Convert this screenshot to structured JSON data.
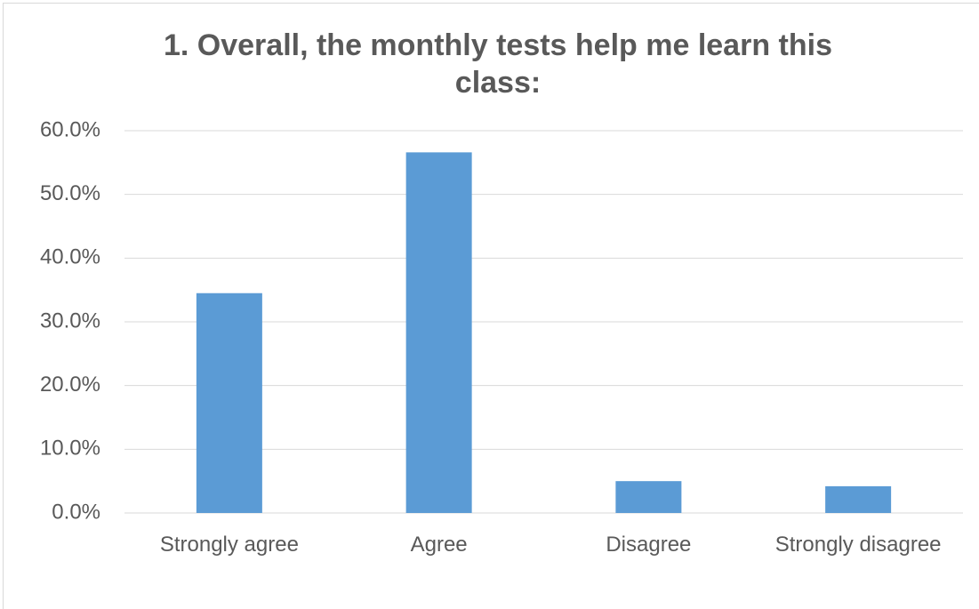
{
  "chart_data": {
    "type": "bar",
    "title": "1. Overall, the monthly tests help me learn this class:",
    "categories": [
      "Strongly agree",
      "Agree",
      "Disagree",
      "Strongly disagree"
    ],
    "values": [
      34.5,
      56.6,
      5.0,
      4.2
    ],
    "color": "#5b9bd5",
    "ylim": [
      0,
      60
    ],
    "yticks": [
      {
        "value": 0,
        "label": "0.0%"
      },
      {
        "value": 10,
        "label": "10.0%"
      },
      {
        "value": 20,
        "label": "20.0%"
      },
      {
        "value": 30,
        "label": "30.0%"
      },
      {
        "value": 40,
        "label": "40.0%"
      },
      {
        "value": 50,
        "label": "50.0%"
      },
      {
        "value": 60,
        "label": "60.0%"
      }
    ],
    "grid": true
  }
}
